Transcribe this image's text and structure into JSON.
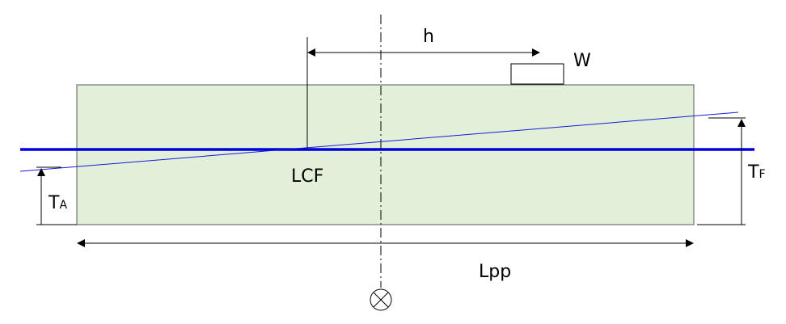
{
  "diagram": {
    "labels": {
      "h": "h",
      "w": "W",
      "lcf": "LCF",
      "t_aft_main": "T",
      "t_aft_sub": "A",
      "t_fwd_main": "T",
      "t_fwd_sub": "F",
      "lpp": "Lpp"
    },
    "colors": {
      "hull_fill": "#e2efd9",
      "hull_stroke": "#5a5a5a",
      "waterline": "#0000e0",
      "trimmed_waterline": "#1a1ad8",
      "lines": "#000000"
    },
    "icons": {
      "midship": "midship-section-symbol"
    }
  }
}
